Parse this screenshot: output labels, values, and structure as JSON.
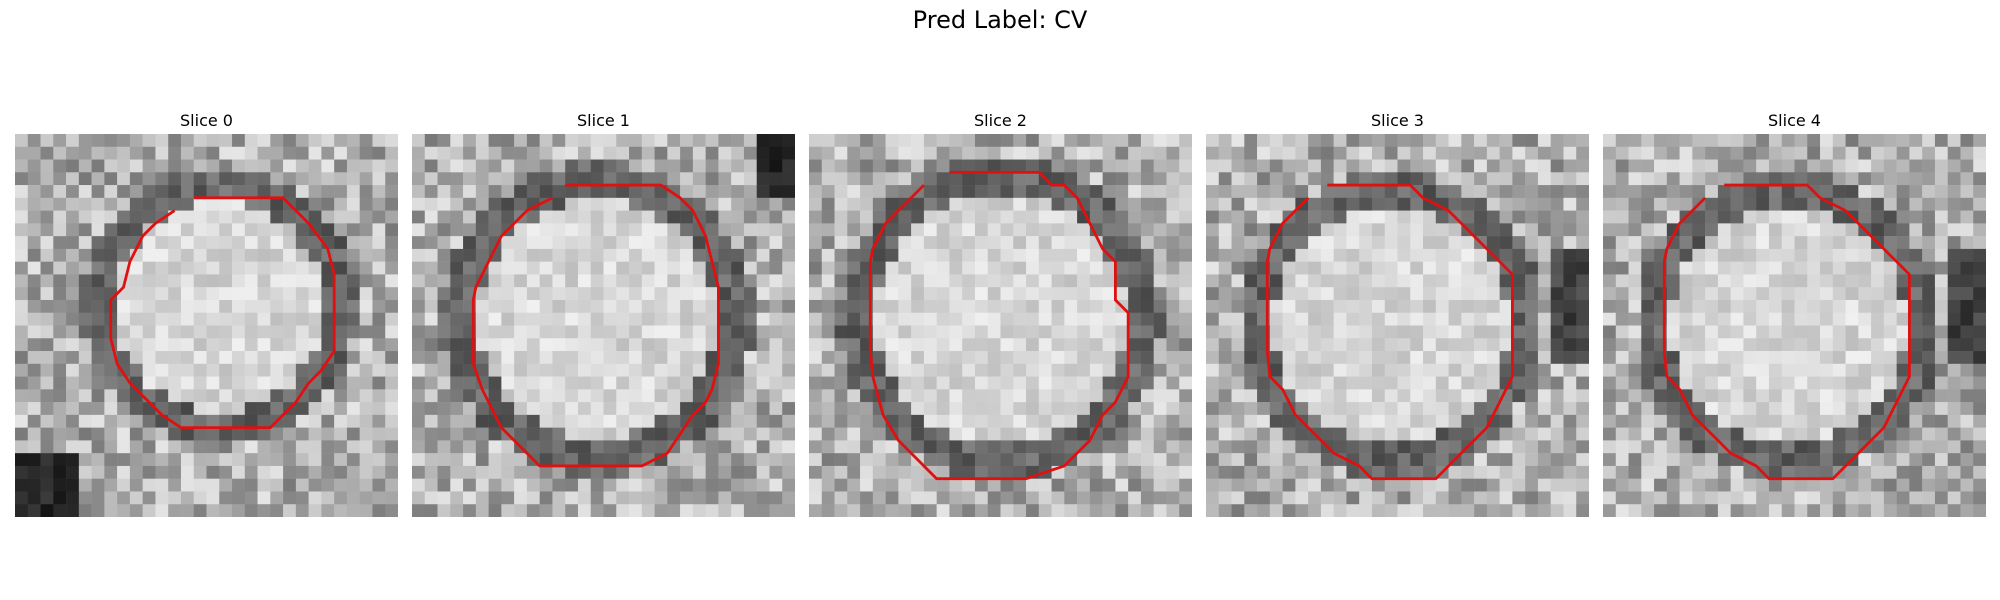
{
  "figure": {
    "title": "Pred Label: CV"
  },
  "panels": [
    {
      "title": "Slice 0"
    },
    {
      "title": "Slice 1"
    },
    {
      "title": "Slice 2"
    },
    {
      "title": "Slice 3"
    },
    {
      "title": "Slice 4"
    }
  ],
  "colors": {
    "contour": "#e01010",
    "background": "#ffffff"
  }
}
